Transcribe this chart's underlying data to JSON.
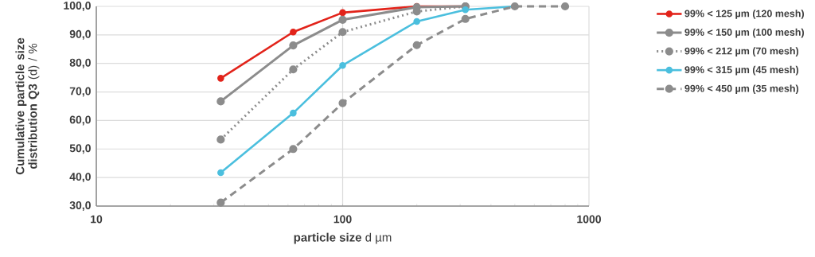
{
  "chart_data": {
    "type": "line",
    "xlabel": "**particle size** d µm",
    "ylabel": "**Cumulative particle size distribution Q3** (d) / %",
    "x": [
      32,
      63,
      100,
      200,
      315,
      500,
      800
    ],
    "series": [
      {
        "name": "99% < 125 µm (120 mesh)",
        "color": "#e2231a",
        "line_style": "solid",
        "values": [
          74.8,
          91.0,
          97.8,
          100.0,
          100.0,
          null,
          null
        ]
      },
      {
        "name": "99% < 150 µm (100 mesh)",
        "color": "#8c8c8c",
        "line_style": "solid",
        "values": [
          66.7,
          86.3,
          95.3,
          99.7,
          100.0,
          null,
          null
        ]
      },
      {
        "name": "99% < 212 µm (70 mesh)",
        "color": "#8c8c8c",
        "line_style": "dotted",
        "values": [
          53.3,
          77.9,
          91.0,
          98.2,
          100.0,
          null,
          null
        ]
      },
      {
        "name": "99% < 315 µm (45 mesh)",
        "color": "#4bbfde",
        "line_style": "solid",
        "values": [
          41.7,
          62.6,
          79.3,
          94.7,
          98.8,
          100.0,
          null
        ]
      },
      {
        "name": "99% < 450 µm (35 mesh)",
        "color": "#8c8c8c",
        "line_style": "dashed",
        "values": [
          31.2,
          50.0,
          66.1,
          86.4,
          95.6,
          100.0,
          100.0
        ]
      }
    ],
    "xlim": [
      10,
      1000
    ],
    "ylim": [
      30,
      100
    ],
    "log": "x",
    "xticks": [
      10,
      100,
      1000
    ],
    "yticks": [
      {
        "value": 30,
        "label": "30,0"
      },
      {
        "value": 40,
        "label": "40,0"
      },
      {
        "value": 50,
        "label": "50,0"
      },
      {
        "value": 60,
        "label": "60,0"
      },
      {
        "value": 70,
        "label": "70,0"
      },
      {
        "value": 80,
        "label": "80,0"
      },
      {
        "value": 90,
        "label": "90,0"
      },
      {
        "value": 100,
        "label": "100,0"
      }
    ],
    "grid": true,
    "legend": "right",
    "marker": "circle"
  }
}
